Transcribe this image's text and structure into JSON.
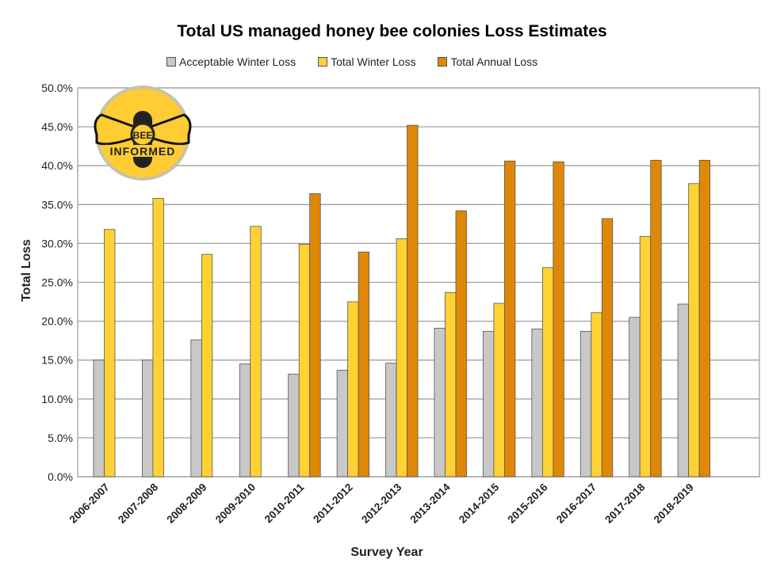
{
  "chart_data": {
    "type": "bar",
    "title": "Total US managed honey bee colonies Loss Estimates",
    "xlabel": "Survey Year",
    "ylabel": "Total Loss",
    "ylim": [
      0,
      50
    ],
    "yticks": [
      "0.0%",
      "5.0%",
      "10.0%",
      "15.0%",
      "20.0%",
      "25.0%",
      "30.0%",
      "35.0%",
      "40.0%",
      "45.0%",
      "50.0%"
    ],
    "grid": true,
    "legend": "top",
    "categories": [
      "2006-2007",
      "2007-2008",
      "2008-2009",
      "2009-2010",
      "2010-2011",
      "2011-2012",
      "2012-2013",
      "2013-2014",
      "2014-2015",
      "2015-2016",
      "2016-2017",
      "2017-2018",
      "2018-2019"
    ],
    "series": [
      {
        "name": "Acceptable Winter Loss",
        "color": "#c8c8c8",
        "values": [
          15.0,
          15.0,
          17.6,
          14.5,
          13.2,
          13.7,
          14.6,
          19.1,
          18.7,
          19.0,
          18.7,
          20.5,
          22.2
        ]
      },
      {
        "name": "Total Winter Loss",
        "color": "#ffd133",
        "values": [
          31.8,
          35.8,
          28.6,
          32.2,
          29.9,
          22.5,
          30.6,
          23.7,
          22.3,
          26.9,
          21.1,
          30.9,
          37.7
        ]
      },
      {
        "name": "Total Annual Loss",
        "color": "#df8808",
        "values": [
          null,
          null,
          null,
          null,
          36.4,
          28.9,
          45.2,
          34.2,
          40.6,
          40.5,
          33.2,
          40.7,
          40.7
        ]
      }
    ]
  },
  "logo": {
    "line1": "BEE",
    "line2": "INFORMED"
  }
}
